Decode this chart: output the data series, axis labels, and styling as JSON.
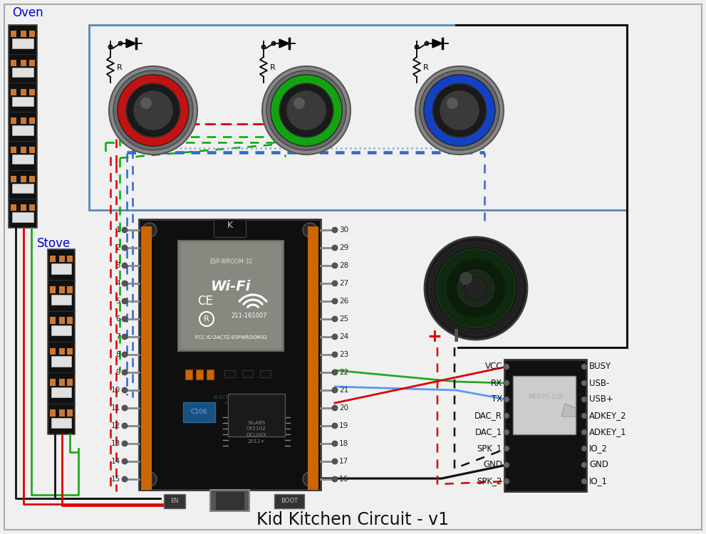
{
  "title": "Kid Kitchen Circuit - v1",
  "title_fontsize": 17,
  "bg_color": "#f0f0f0",
  "fig_width": 9.91,
  "fig_height": 7.5,
  "border_color": "#aaaaaa",
  "text_color": "#111111",
  "oven_label": "Oven",
  "stove_label": "Stove",
  "label_color": "#0000cc",
  "label_fontsize": 12,
  "pin_labels_left": [
    "1",
    "2",
    "3",
    "4",
    "5",
    "6",
    "7",
    "8",
    "9",
    "10",
    "11",
    "12",
    "13",
    "14",
    "15"
  ],
  "pin_labels_right": [
    "30",
    "29",
    "28",
    "27",
    "26",
    "25",
    "24",
    "23",
    "22",
    "21",
    "20",
    "19",
    "18",
    "17",
    "16"
  ],
  "mp3_left_labels": [
    "VCC",
    "RX",
    "TX",
    "DAC_R",
    "DAC_1",
    "SPK_1",
    "GND",
    "SPK_2"
  ],
  "mp3_right_labels": [
    "BUSY",
    "USB-",
    "USB+",
    "ADKEY_2",
    "ADKEY_1",
    "IO_2",
    "GND",
    "IO_1"
  ],
  "btn_colors": [
    "#cc1111",
    "#11aa11",
    "#1144cc"
  ],
  "wr_dash": "#dd0000",
  "wg_dash": "#00aa00",
  "wb_dash": "#3366cc",
  "wk_dash": "#111111",
  "wr_solid": "#dd0000",
  "wg_solid": "#22aa22",
  "wb_solid": "#5599ff",
  "wk_solid": "#111111",
  "panel_color": "#5588bb"
}
